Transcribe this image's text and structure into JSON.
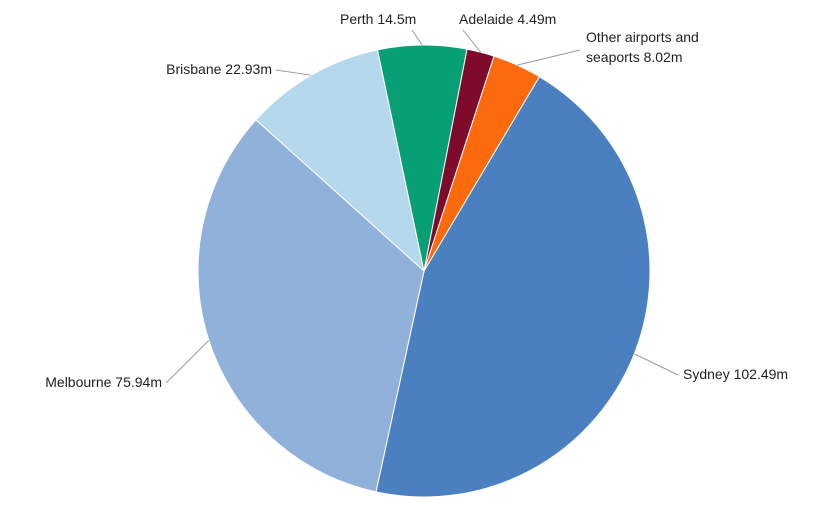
{
  "chart_data": {
    "type": "pie",
    "categories": [
      "Sydney",
      "Melbourne",
      "Brisbane",
      "Perth",
      "Adelaide",
      "Other airports and seaports"
    ],
    "values": [
      102.49,
      75.94,
      22.93,
      14.5,
      4.49,
      8.02
    ],
    "value_labels": [
      "102.49m",
      "75.94m",
      "22.93m",
      "14.5m",
      "4.49m",
      "8.02m"
    ],
    "colors": [
      "#4a7fc0",
      "#8fb1da",
      "#b6d8ec",
      "#07a074",
      "#7f0b2c",
      "#fb6a0c"
    ]
  }
}
